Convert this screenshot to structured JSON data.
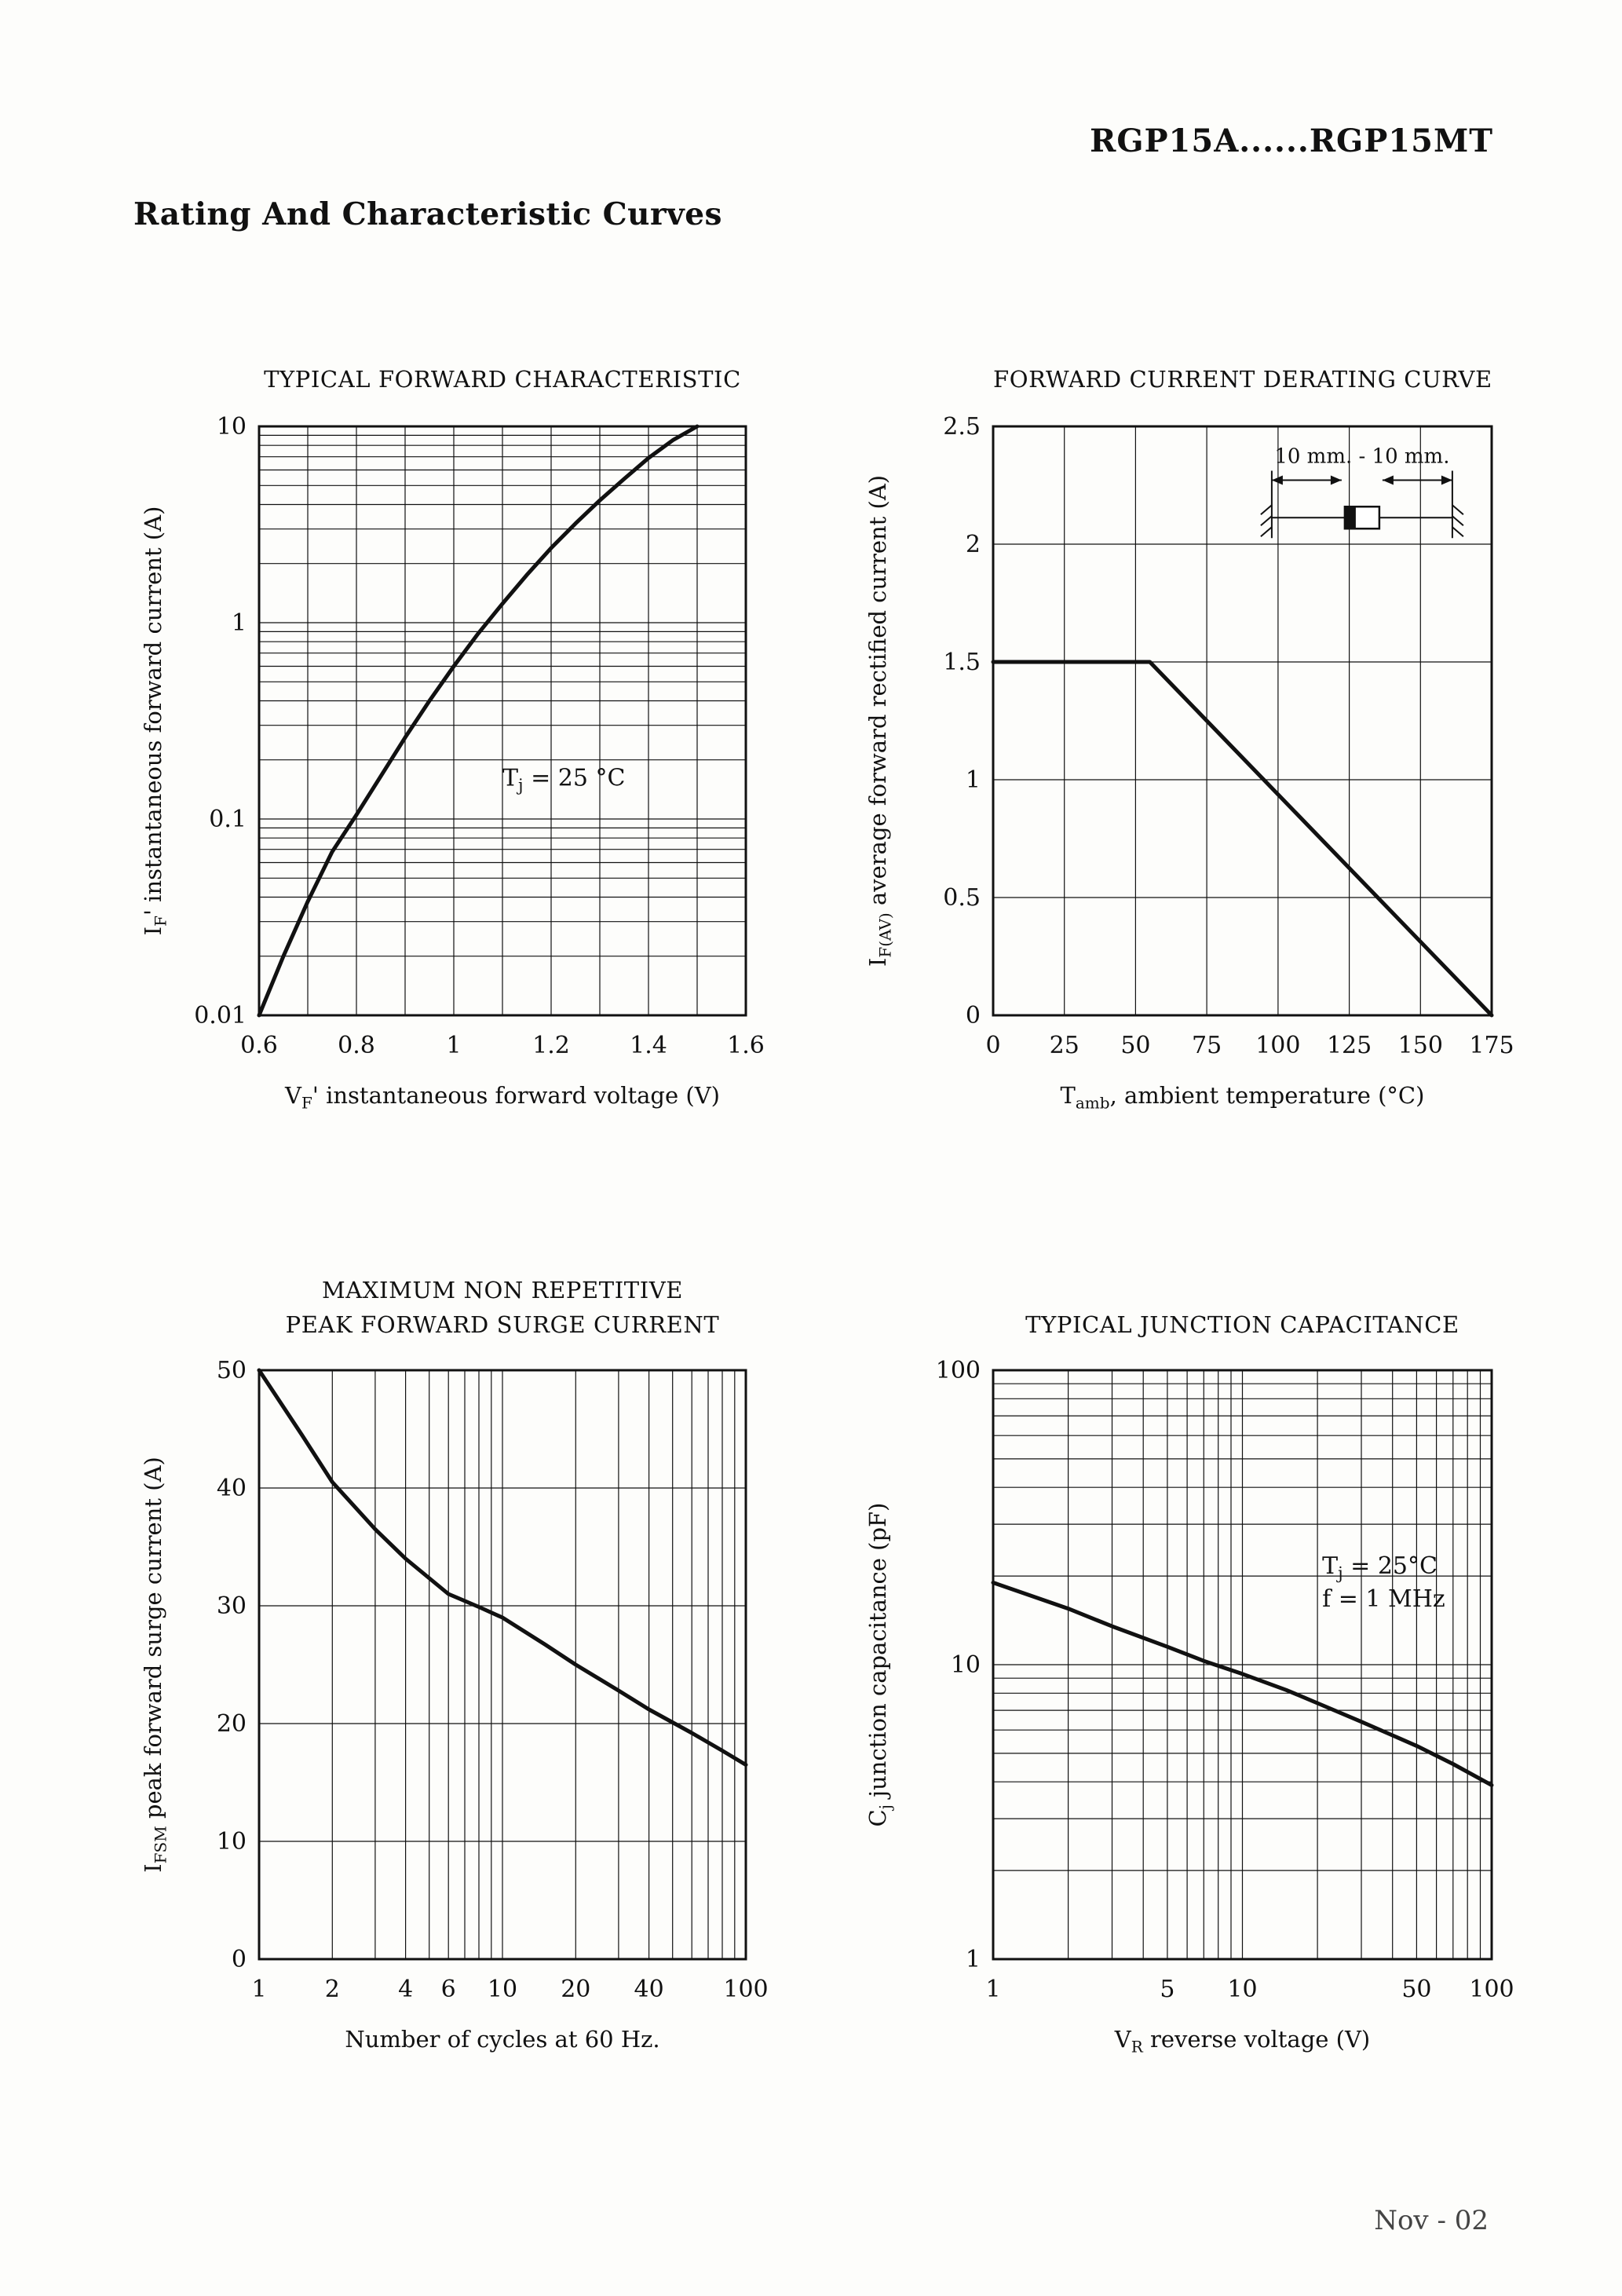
{
  "page": {
    "header": "RGP15A......RGP15MT",
    "title": "Rating And Characteristic Curves",
    "footer": "Nov - 02"
  },
  "chart_data": [
    {
      "id": "typical-forward-characteristic",
      "type": "line",
      "title": "TYPICAL FORWARD CHARACTERISTIC",
      "title_lines": [
        "TYPICAL FORWARD CHARACTERISTIC"
      ],
      "xlabel": "V~F~' instantaneous forward voltage  (V)",
      "ylabel": "I~F~' instantaneous forward current (A)",
      "x": {
        "type": "linear",
        "min": 0.6,
        "max": 1.6,
        "grid_step": 0.1,
        "ticks": [
          {
            "v": 0.6,
            "label": "0.6"
          },
          {
            "v": 0.8,
            "label": "0.8"
          },
          {
            "v": 1,
            "label": "1"
          },
          {
            "v": 1.2,
            "label": "1.2"
          },
          {
            "v": 1.4,
            "label": "1.4"
          },
          {
            "v": 1.6,
            "label": "1.6"
          }
        ]
      },
      "y": {
        "type": "log",
        "min": 0.01,
        "max": 10,
        "ticks": [
          {
            "v": 10,
            "label": "10"
          },
          {
            "v": 1,
            "label": "1"
          },
          {
            "v": 0.1,
            "label": "0.1"
          },
          {
            "v": 0.01,
            "label": "0.01"
          }
        ]
      },
      "series": [
        {
          "name": "instantaneous forward current vs forward voltage",
          "points": [
            [
              0.6,
              0.01
            ],
            [
              0.65,
              0.02
            ],
            [
              0.7,
              0.038
            ],
            [
              0.75,
              0.068
            ],
            [
              0.8,
              0.105
            ],
            [
              0.85,
              0.165
            ],
            [
              0.9,
              0.26
            ],
            [
              0.95,
              0.4
            ],
            [
              1.0,
              0.6
            ],
            [
              1.05,
              0.88
            ],
            [
              1.1,
              1.25
            ],
            [
              1.15,
              1.75
            ],
            [
              1.2,
              2.4
            ],
            [
              1.25,
              3.2
            ],
            [
              1.3,
              4.2
            ],
            [
              1.35,
              5.4
            ],
            [
              1.4,
              6.9
            ],
            [
              1.45,
              8.5
            ],
            [
              1.5,
              10
            ]
          ]
        }
      ],
      "annotations": [
        {
          "lines": [
            "T~j~ = 25 °C"
          ],
          "fx": 0.5,
          "fy": 0.61
        }
      ]
    },
    {
      "id": "forward-current-derating-curve",
      "type": "line",
      "title": "FORWARD CURRENT DERATING CURVE",
      "title_lines": [
        "FORWARD CURRENT DERATING CURVE"
      ],
      "xlabel": "T~amb~, ambient temperature (°C)",
      "ylabel": "I~F(AV)~ average forward rectified current (A)",
      "x": {
        "type": "linear",
        "min": 0,
        "max": 175,
        "grid_step": 25,
        "ticks": [
          {
            "v": 0,
            "label": "0"
          },
          {
            "v": 25,
            "label": "25"
          },
          {
            "v": 50,
            "label": "50"
          },
          {
            "v": 75,
            "label": "75"
          },
          {
            "v": 100,
            "label": "100"
          },
          {
            "v": 125,
            "label": "125"
          },
          {
            "v": 150,
            "label": "150"
          },
          {
            "v": 175,
            "label": "175"
          }
        ]
      },
      "y": {
        "type": "linear",
        "min": 0,
        "max": 2.5,
        "grid_step": 0.5,
        "ticks": [
          {
            "v": 0,
            "label": "0"
          },
          {
            "v": 0.5,
            "label": "0.5"
          },
          {
            "v": 1,
            "label": "1"
          },
          {
            "v": 1.5,
            "label": "1.5"
          },
          {
            "v": 2,
            "label": "2"
          },
          {
            "v": 2.5,
            "label": "2.5"
          }
        ]
      },
      "series": [
        {
          "name": "average forward rectified current vs ambient temperature",
          "points": [
            [
              0,
              1.5
            ],
            [
              55,
              1.5
            ],
            [
              175,
              0
            ]
          ]
        }
      ],
      "annotations": [],
      "inset": {
        "label": "10 mm. - 10 mm."
      }
    },
    {
      "id": "maximum-non-repetitive-peak-forward-surge-current",
      "type": "line",
      "title": "MAXIMUM NON REPETITIVE PEAK FORWARD SURGE CURRENT",
      "title_lines": [
        "MAXIMUM NON REPETITIVE",
        "PEAK FORWARD SURGE CURRENT"
      ],
      "xlabel": "Number of cycles at 60 Hz.",
      "ylabel": "I~FSM~ peak forward surge current (A)",
      "x": {
        "type": "log",
        "min": 1,
        "max": 100,
        "ticks": [
          {
            "v": 1,
            "label": "1"
          },
          {
            "v": 2,
            "label": "2"
          },
          {
            "v": 4,
            "label": "4"
          },
          {
            "v": 6,
            "label": "6"
          },
          {
            "v": 10,
            "label": "10"
          },
          {
            "v": 20,
            "label": "20"
          },
          {
            "v": 40,
            "label": "40"
          },
          {
            "v": 100,
            "label": "100"
          }
        ]
      },
      "y": {
        "type": "linear",
        "min": 0,
        "max": 50,
        "grid_step": 10,
        "ticks": [
          {
            "v": 0,
            "label": "0"
          },
          {
            "v": 10,
            "label": "10"
          },
          {
            "v": 20,
            "label": "20"
          },
          {
            "v": 30,
            "label": "30"
          },
          {
            "v": 40,
            "label": "40"
          },
          {
            "v": 50,
            "label": "50"
          }
        ]
      },
      "series": [
        {
          "name": "peak forward surge current vs number of cycles",
          "points": [
            [
              1,
              50
            ],
            [
              1.5,
              44.5
            ],
            [
              2,
              40.5
            ],
            [
              3,
              36.5
            ],
            [
              4,
              34
            ],
            [
              6,
              31
            ],
            [
              8,
              29.9
            ],
            [
              10,
              29
            ],
            [
              15,
              26.7
            ],
            [
              20,
              25
            ],
            [
              30,
              22.8
            ],
            [
              40,
              21.2
            ],
            [
              60,
              19.2
            ],
            [
              80,
              17.7
            ],
            [
              100,
              16.5
            ]
          ]
        }
      ],
      "annotations": []
    },
    {
      "id": "typical-junction-capacitance",
      "type": "line",
      "title": "TYPICAL JUNCTION CAPACITANCE",
      "title_lines": [
        "TYPICAL JUNCTION CAPACITANCE"
      ],
      "xlabel": "V~R~ reverse voltage (V)",
      "ylabel": "C~j~ junction capacitance (pF)",
      "x": {
        "type": "log",
        "min": 1,
        "max": 100,
        "ticks": [
          {
            "v": 1,
            "label": "1"
          },
          {
            "v": 5,
            "label": "5"
          },
          {
            "v": 10,
            "label": "10"
          },
          {
            "v": 50,
            "label": "50"
          },
          {
            "v": 100,
            "label": "100"
          }
        ]
      },
      "y": {
        "type": "log",
        "min": 1,
        "max": 100,
        "ticks": [
          {
            "v": 1,
            "label": "1"
          },
          {
            "v": 10,
            "label": "10"
          },
          {
            "v": 100,
            "label": "100"
          }
        ]
      },
      "series": [
        {
          "name": "junction capacitance vs reverse voltage",
          "points": [
            [
              1,
              19
            ],
            [
              2,
              15.5
            ],
            [
              3,
              13.5
            ],
            [
              5,
              11.5
            ],
            [
              7,
              10.3
            ],
            [
              10,
              9.3
            ],
            [
              15,
              8.2
            ],
            [
              20,
              7.4
            ],
            [
              30,
              6.4
            ],
            [
              50,
              5.3
            ],
            [
              70,
              4.6
            ],
            [
              100,
              3.9
            ]
          ]
        }
      ],
      "annotations": [
        {
          "lines": [
            "T~j~ = 25°C",
            "f = 1 MHz"
          ],
          "fx": 0.66,
          "fy": 0.345
        }
      ]
    }
  ]
}
